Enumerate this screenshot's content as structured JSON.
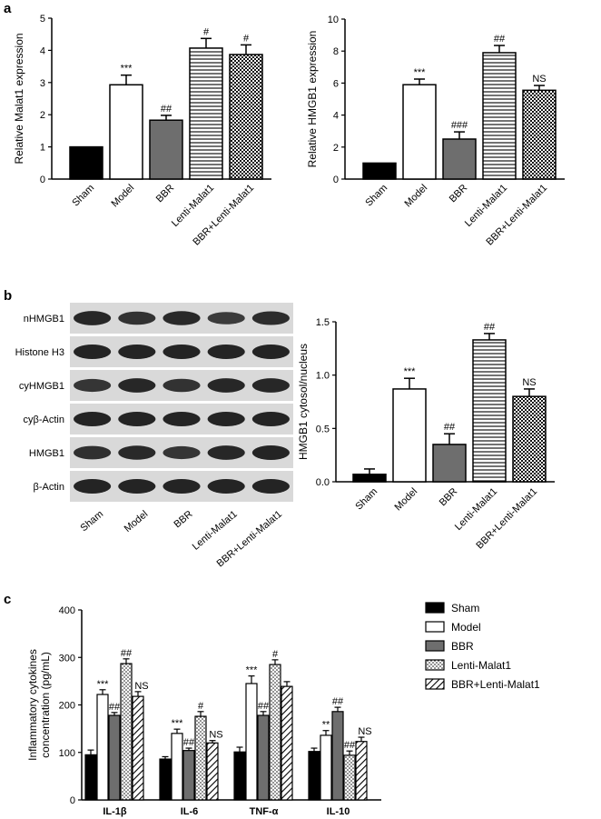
{
  "panels": {
    "a": "a",
    "b": "b",
    "c": "c"
  },
  "groups": [
    "Sham",
    "Model",
    "BBR",
    "Lenti-Malat1",
    "BBR+Lenti-Malat1"
  ],
  "blot": {
    "rows": [
      "nHMGB1",
      "Histone H3",
      "cyHMGB1",
      "cyβ-Actin",
      "HMGB1",
      "β-Actin"
    ],
    "lanes": [
      "Sham",
      "Model",
      "BBR",
      "Lenti-Malat1",
      "BBR+Lenti-Malat1"
    ]
  },
  "chart_data": [
    {
      "id": "malat1",
      "type": "bar",
      "categories": [
        "Sham",
        "Model",
        "BBR",
        "Lenti-Malat1",
        "BBR+Lenti-Malat1"
      ],
      "values": [
        1.0,
        2.93,
        1.83,
        4.07,
        3.87
      ],
      "errors": [
        0.0,
        0.3,
        0.15,
        0.3,
        0.3
      ],
      "annotations": [
        "",
        "***",
        "##",
        "#",
        "#"
      ],
      "ylabel": "Relative Malat1 expression",
      "ylim": [
        0,
        5
      ],
      "yticks": [
        0,
        1,
        2,
        3,
        4,
        5
      ],
      "fills": [
        "solid-black",
        "white",
        "solid-gray",
        "horizontal-lines",
        "checker"
      ]
    },
    {
      "id": "hmgb1",
      "type": "bar",
      "categories": [
        "Sham",
        "Model",
        "BBR",
        "Lenti-Malat1",
        "BBR+Lenti-Malat1"
      ],
      "values": [
        1.0,
        5.9,
        2.5,
        7.9,
        5.55
      ],
      "errors": [
        0.0,
        0.35,
        0.45,
        0.45,
        0.3
      ],
      "annotations": [
        "",
        "***",
        "###",
        "##",
        "NS"
      ],
      "ylabel": "Relative HMGB1 expression",
      "ylim": [
        0,
        10
      ],
      "yticks": [
        0,
        2,
        4,
        6,
        8,
        10
      ],
      "fills": [
        "solid-black",
        "white",
        "solid-gray",
        "horizontal-lines",
        "checker"
      ]
    },
    {
      "id": "cytosol",
      "type": "bar",
      "categories": [
        "Sham",
        "Model",
        "BBR",
        "Lenti-Malat1",
        "BBR+Lenti-Malat1"
      ],
      "values": [
        0.07,
        0.87,
        0.35,
        1.33,
        0.8
      ],
      "errors": [
        0.05,
        0.1,
        0.1,
        0.06,
        0.07
      ],
      "annotations": [
        "",
        "***",
        "##",
        "##",
        "NS"
      ],
      "ylabel": "HMGB1 cytosol/nucleus",
      "ylim": [
        0,
        1.5
      ],
      "yticks": [
        "0.0",
        "0.5",
        "1.0",
        "1.5"
      ],
      "fills": [
        "solid-black",
        "white",
        "solid-gray",
        "horizontal-lines",
        "checker"
      ]
    },
    {
      "id": "cytokines",
      "type": "bar",
      "categories": [
        "IL-1β",
        "IL-6",
        "TNF-α",
        "IL-10"
      ],
      "series": [
        {
          "name": "Sham",
          "values": [
            95,
            86,
            101,
            102
          ],
          "errors": [
            10,
            5,
            10,
            7
          ],
          "annotations": [
            "",
            "",
            "",
            ""
          ],
          "fill": "solid-black"
        },
        {
          "name": "Model",
          "values": [
            222,
            140,
            245,
            136
          ],
          "errors": [
            10,
            9,
            16,
            10
          ],
          "annotations": [
            "***",
            "***",
            "***",
            "**"
          ],
          "fill": "white"
        },
        {
          "name": "BBR",
          "values": [
            178,
            104,
            178,
            186
          ],
          "errors": [
            6,
            5,
            8,
            9
          ],
          "annotations": [
            "##",
            "##",
            "##",
            "##"
          ],
          "fill": "solid-gray"
        },
        {
          "name": "Lenti-Malat1",
          "values": [
            287,
            176,
            285,
            94
          ],
          "errors": [
            10,
            10,
            10,
            9
          ],
          "annotations": [
            "##",
            "#",
            "#",
            "##"
          ],
          "fill": "dots"
        },
        {
          "name": "BBR+Lenti-Malat1",
          "values": [
            218,
            120,
            239,
            123
          ],
          "errors": [
            10,
            5,
            10,
            9
          ],
          "annotations": [
            "NS",
            "NS",
            "",
            "NS"
          ],
          "fill": "diagonal-lines"
        }
      ],
      "ylabel": "Inflammatory cytokines concentration (pg/mL)",
      "ylabel_lines": [
        "Inflammatory cytokines",
        "concentration (pg/mL)"
      ],
      "ylim": [
        0,
        400
      ],
      "yticks": [
        0,
        100,
        200,
        300,
        400
      ],
      "legend_placement": "right"
    }
  ]
}
